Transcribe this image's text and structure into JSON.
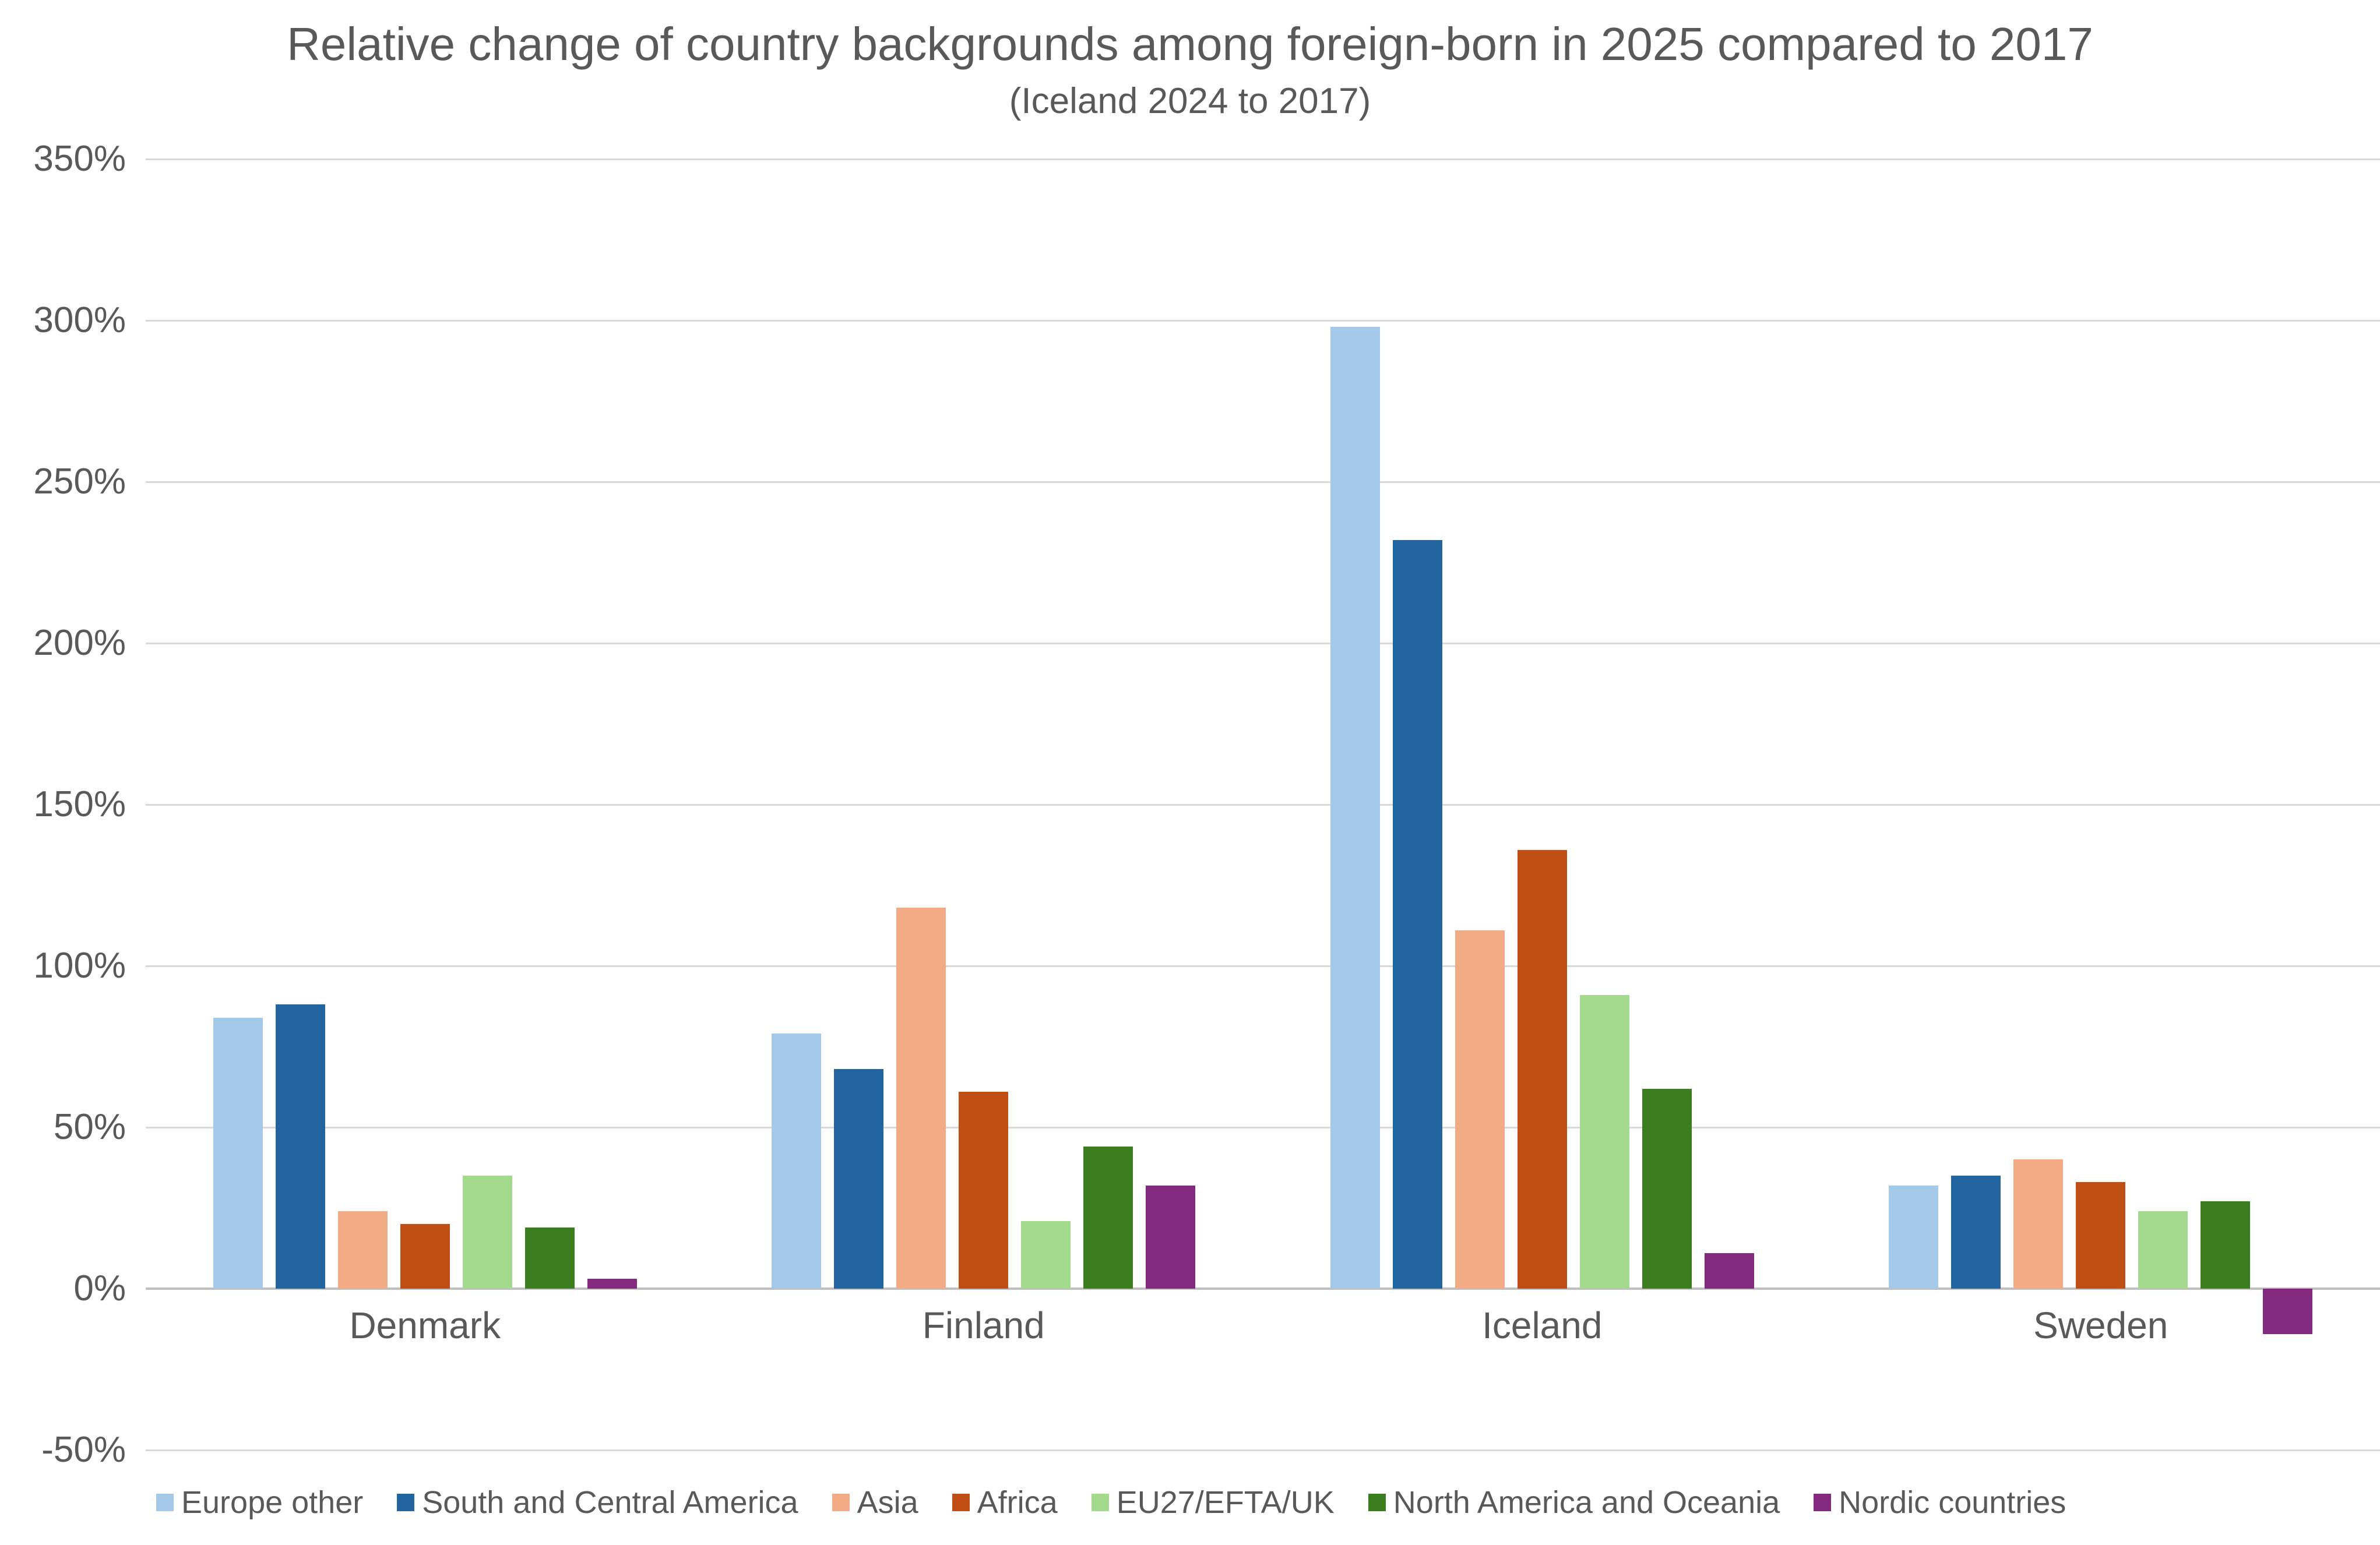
{
  "title": "Relative change of country backgrounds among foreign-born in 2025 compared to 2017",
  "subtitle": "(Iceland 2024 to 2017)",
  "text_color": "#595959",
  "gridline_color": "#D9D9D9",
  "zero_axis_color": "#BFBFBF",
  "background_color": "#FFFFFF",
  "chart_data": {
    "type": "bar",
    "title": "Relative change of country backgrounds among foreign-born in 2025 compared to 2017",
    "subtitle": "(Iceland 2024 to 2017)",
    "categories": [
      "Denmark",
      "Finland",
      "Iceland",
      "Sweden"
    ],
    "series": [
      {
        "name": "Europe other",
        "color": "#A4C9E9",
        "values": [
          84,
          79,
          298,
          32
        ]
      },
      {
        "name": "South and Central America",
        "color": "#2164A0",
        "values": [
          88,
          68,
          232,
          35
        ]
      },
      {
        "name": "Asia",
        "color": "#F2AB84",
        "values": [
          24,
          118,
          111,
          40
        ]
      },
      {
        "name": "Africa",
        "color": "#C04F16",
        "values": [
          20,
          61,
          136,
          33
        ]
      },
      {
        "name": "EU27/EFTA/UK",
        "color": "#A4DA8E",
        "values": [
          35,
          21,
          91,
          24
        ]
      },
      {
        "name": "North America and Oceania",
        "color": "#3B7D1F",
        "values": [
          19,
          44,
          62,
          27
        ]
      },
      {
        "name": "Nordic countries",
        "color": "#83297E",
        "values": [
          3,
          32,
          11,
          -14
        ]
      }
    ],
    "xlabel": "",
    "ylabel": "",
    "ylim": [
      -50,
      350
    ],
    "y_step": 50,
    "y_tick_labels": [
      "350%",
      "300%",
      "250%",
      "200%",
      "150%",
      "100%",
      "50%",
      "0%",
      "-50%"
    ],
    "y_format": "percent",
    "grid": true,
    "legend_position": "bottom"
  }
}
